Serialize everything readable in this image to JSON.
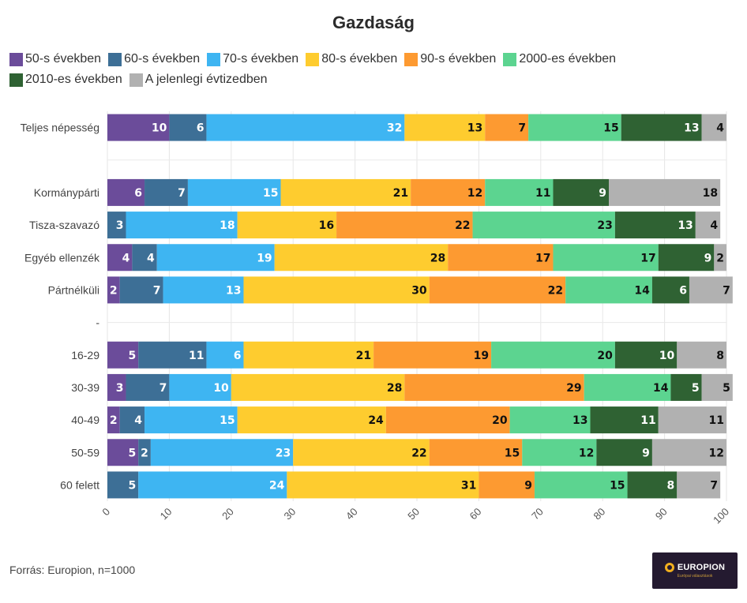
{
  "chart_data": {
    "type": "bar",
    "orientation": "horizontal",
    "stacked": true,
    "title": "Gazdaság",
    "xlim": [
      0,
      100
    ],
    "x_ticks": [
      0,
      10,
      20,
      30,
      40,
      50,
      60,
      70,
      80,
      90,
      100
    ],
    "grid": true,
    "legend_position": "top-left",
    "categories": [
      "Teljes népesség",
      "",
      "Kormánypárti",
      "Tisza-szavazó",
      "Egyéb ellenzék",
      "Pártnélküli",
      "-",
      "16-29",
      "30-39",
      "40-49",
      "50-59",
      "60 felett"
    ],
    "series": [
      {
        "name": "50-s években",
        "color": "#6b4c9a",
        "label_color": "#ffffff",
        "values": [
          10,
          null,
          6,
          0,
          4,
          2,
          null,
          5,
          3,
          2,
          5,
          0
        ]
      },
      {
        "name": "60-s években",
        "color": "#3d6f96",
        "label_color": "#ffffff",
        "values": [
          6,
          null,
          7,
          3,
          4,
          7,
          null,
          11,
          7,
          4,
          2,
          5
        ]
      },
      {
        "name": "70-s években",
        "color": "#3eb5f2",
        "label_color": "#ffffff",
        "values": [
          32,
          null,
          15,
          18,
          19,
          13,
          null,
          6,
          10,
          15,
          23,
          24
        ]
      },
      {
        "name": "80-s években",
        "color": "#fecc2f",
        "label_color": "#111111",
        "values": [
          13,
          null,
          21,
          16,
          28,
          30,
          null,
          21,
          28,
          24,
          22,
          31
        ]
      },
      {
        "name": "90-s években",
        "color": "#fd9a31",
        "label_color": "#111111",
        "values": [
          7,
          null,
          12,
          22,
          17,
          22,
          null,
          19,
          29,
          20,
          15,
          9
        ]
      },
      {
        "name": "2000-es években",
        "color": "#5cd490",
        "label_color": "#111111",
        "values": [
          15,
          null,
          11,
          23,
          17,
          14,
          null,
          20,
          14,
          13,
          12,
          15
        ]
      },
      {
        "name": "2010-es években",
        "color": "#2f6233",
        "label_color": "#ffffff",
        "values": [
          13,
          null,
          9,
          13,
          9,
          6,
          null,
          10,
          5,
          11,
          9,
          8
        ]
      },
      {
        "name": "A jelenlegi évtizedben",
        "color": "#b1b1b1",
        "label_color": "#111111",
        "values": [
          4,
          null,
          18,
          4,
          2,
          7,
          null,
          8,
          5,
          11,
          12,
          7
        ]
      }
    ]
  },
  "source": "Forrás: Europion, n=1000",
  "logo": {
    "text": "EUROPION",
    "tagline": "Európai választások"
  }
}
